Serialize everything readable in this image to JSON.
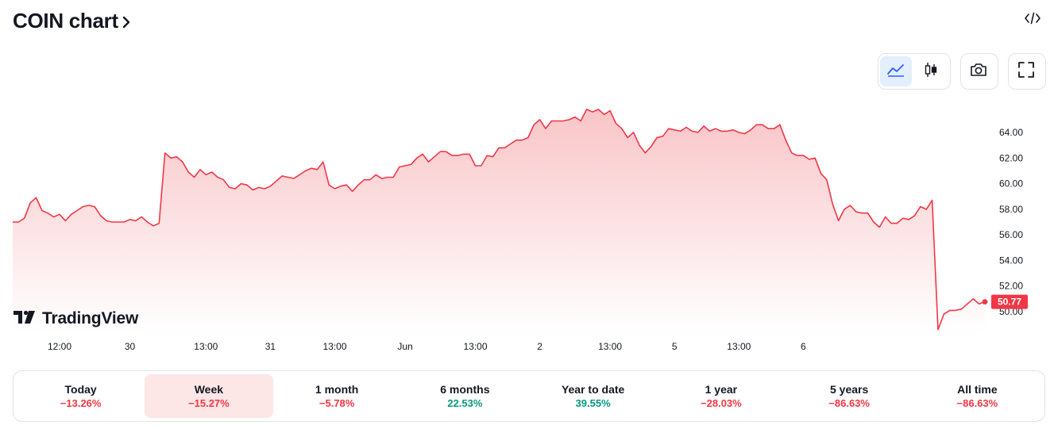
{
  "header": {
    "title": "COIN chart",
    "chevron_icon": "chevron-right-icon",
    "embed_icon": "code-brackets-icon"
  },
  "toolbar": {
    "chart_types": [
      {
        "name": "area-chart-icon",
        "active": true
      },
      {
        "name": "candlestick-chart-icon",
        "active": false
      }
    ],
    "actions": [
      {
        "name": "camera-icon"
      },
      {
        "name": "fullscreen-icon"
      }
    ]
  },
  "watermark": {
    "text": "TradingView",
    "logo": "tradingview-logo"
  },
  "colors": {
    "line": "#f23645",
    "fill_top": "#f9c5c8",
    "negative": "#f23645",
    "positive": "#089981",
    "active_tab_bg": "#fde6e6",
    "active_icon_bg": "#e3effd",
    "active_icon": "#2962ff"
  },
  "chart_data": {
    "type": "area",
    "title": "",
    "y_ticks": [
      "64.00",
      "62.00",
      "60.00",
      "58.00",
      "56.00",
      "54.00",
      "52.00",
      "50.00"
    ],
    "ylim": [
      48.5,
      65.6
    ],
    "x_tick_labels": [
      "12:00",
      "30",
      "13:00",
      "31",
      "13:00",
      "Jun",
      "13:00",
      "2",
      "13:00",
      "5",
      "13:00",
      "6"
    ],
    "x_tick_index": [
      8,
      20,
      33,
      44,
      55,
      67,
      79,
      90,
      102,
      113,
      124,
      135
    ],
    "last_price_label": "50.77",
    "last_price": 50.77,
    "series": [
      {
        "values": [
          57.0,
          57.0,
          57.3,
          58.5,
          58.9,
          57.9,
          57.7,
          57.4,
          57.6,
          57.1,
          57.6,
          57.9,
          58.2,
          58.3,
          58.2,
          57.5,
          57.1,
          57.0,
          57.0,
          57.0,
          57.2,
          57.1,
          57.4,
          57.0,
          56.7,
          56.9,
          62.4,
          62.0,
          62.1,
          61.7,
          60.9,
          60.5,
          61.1,
          60.7,
          60.9,
          60.5,
          60.3,
          59.7,
          59.6,
          60.0,
          59.9,
          59.5,
          59.7,
          59.6,
          59.8,
          60.2,
          60.6,
          60.5,
          60.4,
          60.7,
          61.0,
          61.2,
          61.1,
          61.7,
          59.9,
          59.6,
          59.8,
          59.9,
          59.4,
          59.9,
          60.3,
          60.3,
          60.7,
          60.4,
          60.5,
          60.5,
          61.3,
          61.4,
          61.5,
          62.0,
          62.3,
          61.7,
          62.1,
          62.5,
          62.5,
          62.2,
          62.2,
          62.3,
          62.3,
          61.4,
          61.4,
          62.2,
          62.1,
          62.8,
          62.8,
          63.1,
          63.4,
          63.4,
          63.6,
          64.6,
          65.0,
          64.3,
          64.9,
          64.9,
          64.9,
          65.0,
          65.2,
          64.9,
          65.8,
          65.6,
          65.8,
          65.4,
          65.7,
          64.7,
          64.3,
          63.6,
          64.0,
          63.0,
          62.4,
          62.9,
          63.6,
          63.7,
          64.3,
          64.2,
          64.1,
          64.4,
          64.1,
          64.0,
          64.5,
          64.1,
          64.3,
          64.1,
          64.1,
          64.2,
          64.0,
          63.9,
          64.2,
          64.6,
          64.6,
          64.3,
          64.3,
          64.6,
          63.4,
          62.4,
          62.2,
          62.2,
          61.9,
          62.0,
          60.8,
          60.3,
          58.4,
          57.1,
          58.0,
          58.3,
          57.8,
          57.7,
          57.7,
          57.0,
          56.6,
          57.4,
          56.9,
          56.9,
          57.3,
          57.2,
          57.5,
          58.2,
          58.0,
          58.7,
          48.6,
          49.8,
          50.1,
          50.1,
          50.2,
          50.6,
          51.0,
          50.6,
          50.77
        ]
      }
    ]
  },
  "periods": [
    {
      "label": "Today",
      "change": "−13.26%",
      "sign": "neg",
      "active": false
    },
    {
      "label": "Week",
      "change": "−15.27%",
      "sign": "neg",
      "active": true
    },
    {
      "label": "1 month",
      "change": "−5.78%",
      "sign": "neg",
      "active": false
    },
    {
      "label": "6 months",
      "change": "22.53%",
      "sign": "pos",
      "active": false
    },
    {
      "label": "Year to date",
      "change": "39.55%",
      "sign": "pos",
      "active": false
    },
    {
      "label": "1 year",
      "change": "−28.03%",
      "sign": "neg",
      "active": false
    },
    {
      "label": "5 years",
      "change": "−86.63%",
      "sign": "neg",
      "active": false
    },
    {
      "label": "All time",
      "change": "−86.63%",
      "sign": "neg",
      "active": false
    }
  ]
}
